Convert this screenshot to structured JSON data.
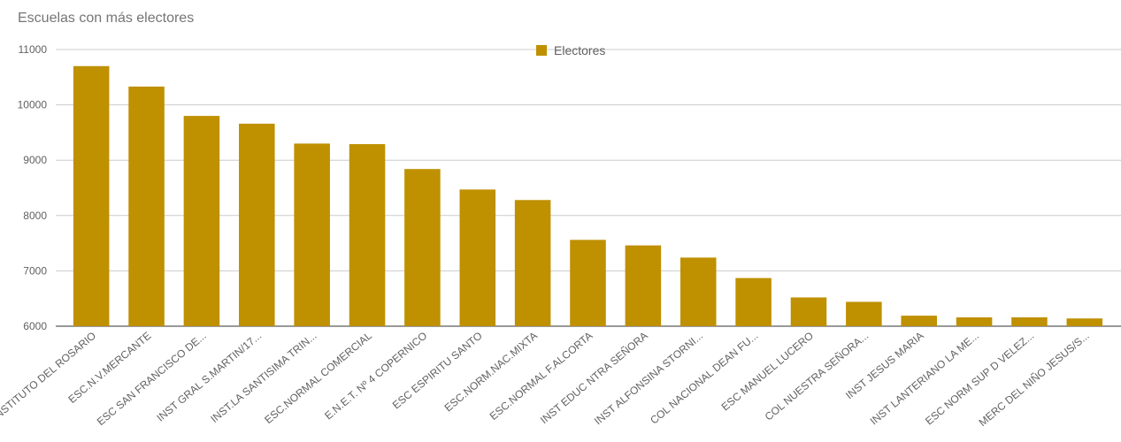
{
  "chart_data": {
    "type": "bar",
    "title": "Escuelas con más electores",
    "xlabel": "",
    "ylabel": "",
    "ylim": [
      6000,
      11000
    ],
    "yticks": [
      6000,
      7000,
      8000,
      9000,
      10000,
      11000
    ],
    "grid": true,
    "legend_position": "top-center",
    "bar_color": "#bf9000",
    "categories": [
      "INSTITUTO DEL ROSARIO",
      "ESC.N.V.MERCANTE",
      "ESC SAN FRANCISCO DE...",
      "INST GRAL S.MARTIN/17...",
      "INST.LA SANTISIMA TRIN...",
      "ESC.NORMAL COMERCIAL",
      "E.N.E.T. Nº 4 COPERNICO",
      "ESC ESPIRITU SANTO",
      "ESC.NORM.NAC.MIXTA",
      "ESC.NORMAL F.ALCORTA",
      "INST EDUC NTRA SEÑORA",
      "INST ALFONSINA STORNI...",
      "COL NACIONAL DEAN FU...",
      "ESC MANUEL LUCERO",
      "COL   NUESTRA SEÑORA...",
      "INST JESUS MARIA",
      "INST LANTERIANO LA ME...",
      "ESC NORM SUP D VELEZ...",
      "MERC DEL NIÑO JESUS/S..."
    ],
    "series": [
      {
        "name": "Electores",
        "color": "#bf9000",
        "values": [
          10700,
          10330,
          9800,
          9660,
          9300,
          9290,
          8840,
          8470,
          8280,
          7560,
          7460,
          7240,
          6870,
          6520,
          6440,
          6190,
          6160,
          6160,
          6140
        ]
      }
    ]
  }
}
